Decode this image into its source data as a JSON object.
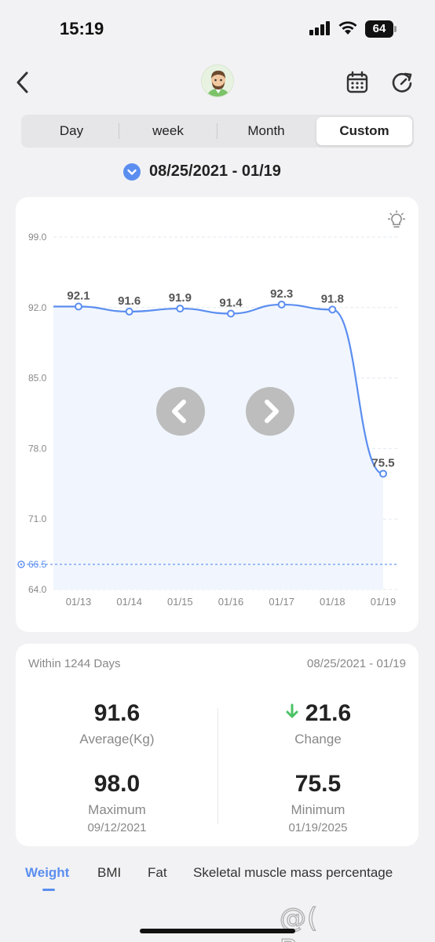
{
  "status": {
    "time": "15:19",
    "battery": "64"
  },
  "tabs": [
    {
      "label": "Day"
    },
    {
      "label": "week"
    },
    {
      "label": "Month"
    },
    {
      "label": "Custom"
    }
  ],
  "selected_tab": "Custom",
  "date_range": "08/25/2021 - 01/19",
  "chart_data": {
    "type": "area",
    "categories": [
      "01/13",
      "01/14",
      "01/15",
      "01/16",
      "01/17",
      "01/18",
      "01/19"
    ],
    "series": [
      {
        "values": [
          92.1,
          91.6,
          91.9,
          91.4,
          92.3,
          91.8,
          75.5
        ]
      }
    ],
    "data_labels": [
      "92.1",
      "91.6",
      "91.9",
      "91.4",
      "92.3",
      "91.8",
      "75.5"
    ],
    "y_ticks": [
      "99.0",
      "92.0",
      "85.0",
      "78.0",
      "71.0",
      "64.0"
    ],
    "ylim": [
      64.0,
      99.0
    ],
    "target_line": {
      "value": 66.5,
      "label": "66.5"
    },
    "grid": true,
    "colors": {
      "line": "#5b8ef0",
      "fill": "#f1f6fe",
      "target": "#5b8ef0"
    }
  },
  "stats": {
    "within": "Within 1244 Days",
    "range": "08/25/2021 - 01/19",
    "average": {
      "value": "91.6",
      "label": "Average(Kg)"
    },
    "change": {
      "value": "21.6",
      "label": "Change",
      "direction": "down"
    },
    "maximum": {
      "value": "98.0",
      "label": "Maximum",
      "date": "09/12/2021"
    },
    "minimum": {
      "value": "75.5",
      "label": "Minimum",
      "date": "01/19/2025"
    }
  },
  "bottom_tabs": [
    {
      "label": "Weight"
    },
    {
      "label": "BMI"
    },
    {
      "label": "Fat"
    },
    {
      "label": "Skeletal muscle mass percentage"
    }
  ],
  "watermark": "@( Bazos.cz"
}
